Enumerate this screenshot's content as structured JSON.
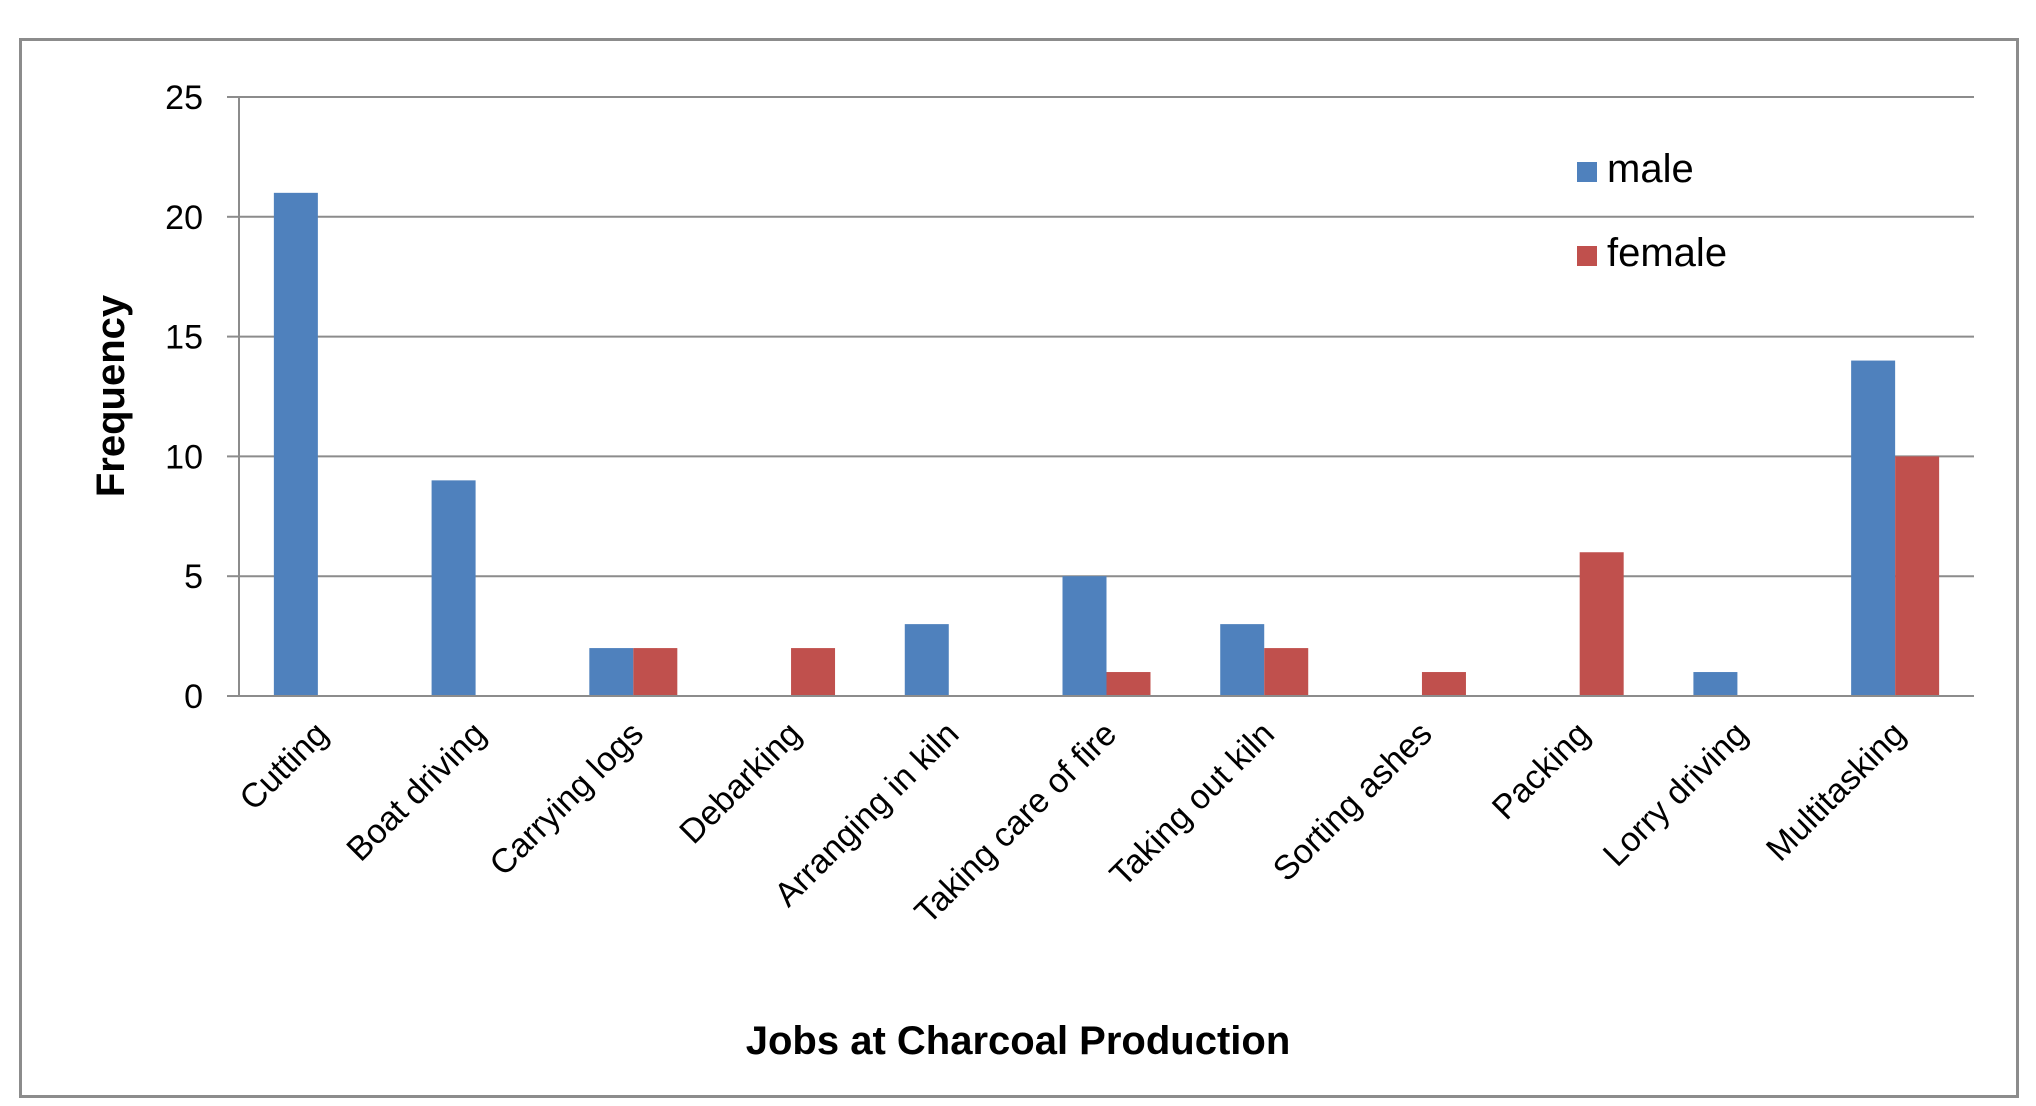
{
  "chart_data": {
    "type": "bar",
    "title": "",
    "xlabel": "Jobs at Charcoal Production",
    "ylabel": "Frequency",
    "ylim": [
      0,
      25
    ],
    "yticks": [
      0,
      5,
      10,
      15,
      20,
      25
    ],
    "grid": true,
    "legend_position": "top-right",
    "categories": [
      "Cutting",
      "Boat driving",
      "Carrying logs",
      "Debarking",
      "Arranging in kiln",
      "Taking care of fire",
      "Taking out kiln",
      "Sorting ashes",
      "Packing",
      "Lorry driving",
      "Multitasking"
    ],
    "series": [
      {
        "name": "male",
        "color": "#4f81bd",
        "values": [
          21,
          9,
          2,
          0,
          3,
          5,
          3,
          0,
          0,
          1,
          14
        ]
      },
      {
        "name": "female",
        "color": "#c0504d",
        "values": [
          0,
          0,
          2,
          2,
          0,
          1,
          2,
          1,
          6,
          0,
          10
        ]
      }
    ]
  }
}
